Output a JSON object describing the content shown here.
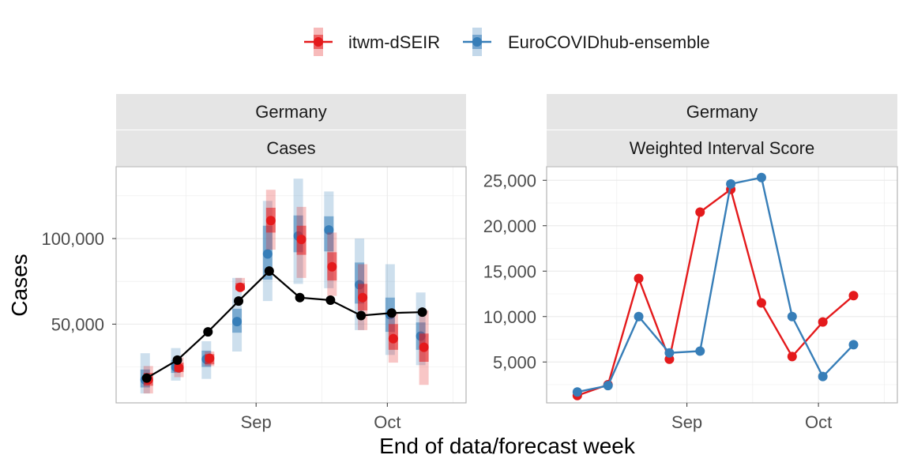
{
  "legend": {
    "entries": [
      {
        "name": "itwm-dSEIR",
        "color": "#e41a1c"
      },
      {
        "name": "EuroCOVIDhub-ensemble",
        "color": "#377eb8"
      }
    ]
  },
  "xlabel": "End of data/forecast week",
  "colors": {
    "observed": "#000000",
    "strip": "#e5e5e5",
    "grid": "#ebebeb",
    "border": "#b3b3b3"
  },
  "chart_data": [
    {
      "type": "line",
      "strip_top": "Germany",
      "strip_bottom": "Cases",
      "ylabel": "Cases",
      "xlim": [
        "2021-07-31",
        "2021-10-19"
      ],
      "ylim": [
        4000,
        142000
      ],
      "x_ticks": [
        {
          "date": "2021-09-01",
          "label": "Sep"
        },
        {
          "date": "2021-10-01",
          "label": "Oct"
        }
      ],
      "y_ticks": [
        {
          "value": 50000,
          "label": "50,000"
        },
        {
          "value": 100000,
          "label": "100,000"
        }
      ],
      "observed": {
        "dates": [
          "2021-08-07",
          "2021-08-14",
          "2021-08-21",
          "2021-08-28",
          "2021-09-04",
          "2021-09-11",
          "2021-09-18",
          "2021-09-25",
          "2021-10-02",
          "2021-10-09"
        ],
        "values": [
          18500,
          29000,
          45500,
          63500,
          81000,
          65500,
          64000,
          55000,
          56500,
          57000
        ]
      },
      "forecasts": [
        {
          "model": "EuroCOVIDhub-ensemble",
          "dates": [
            "2021-08-07",
            "2021-08-14",
            "2021-08-21",
            "2021-08-28",
            "2021-09-04",
            "2021-09-11",
            "2021-09-18",
            "2021-09-25",
            "2021-10-02",
            "2021-10-09"
          ],
          "median": [
            17500,
            25000,
            29500,
            51500,
            91000,
            101500,
            105000,
            73000,
            55500,
            43000
          ],
          "q25": [
            13000,
            21500,
            25000,
            45000,
            76000,
            92000,
            92500,
            62000,
            45500,
            35000
          ],
          "q75": [
            23500,
            29000,
            34500,
            59000,
            107500,
            113500,
            113000,
            86000,
            65500,
            51000
          ],
          "q05": [
            9500,
            17000,
            18000,
            34000,
            63500,
            73500,
            71000,
            46500,
            32000,
            26000
          ],
          "q95": [
            33000,
            36000,
            40000,
            77000,
            122000,
            135000,
            127500,
            100000,
            85000,
            68500
          ]
        },
        {
          "model": "itwm-dSEIR",
          "dates": [
            "2021-08-07",
            "2021-08-14",
            "2021-08-21",
            "2021-08-28",
            "2021-09-04",
            "2021-09-11",
            "2021-09-18",
            "2021-09-25",
            "2021-10-02",
            "2021-10-09"
          ],
          "median": [
            17500,
            24500,
            30000,
            71500,
            110500,
            99500,
            83500,
            65500,
            41500,
            36500
          ],
          "q25": [
            14000,
            22000,
            26500,
            70000,
            103500,
            90500,
            75500,
            58000,
            35000,
            28000
          ],
          "q75": [
            21500,
            27500,
            32500,
            74000,
            118000,
            107500,
            92000,
            73500,
            50000,
            44500
          ],
          "q05": [
            9500,
            19000,
            25500,
            69500,
            93500,
            77000,
            66500,
            46500,
            27500,
            14500
          ],
          "q95": [
            25500,
            30500,
            34000,
            77000,
            128500,
            118500,
            103500,
            85000,
            56500,
            58000
          ]
        }
      ]
    },
    {
      "type": "line",
      "strip_top": "Germany",
      "strip_bottom": "Weighted Interval Score",
      "xlim": [
        "2021-07-31",
        "2021-10-19"
      ],
      "ylim": [
        500,
        26500
      ],
      "x_ticks": [
        {
          "date": "2021-09-01",
          "label": "Sep"
        },
        {
          "date": "2021-10-01",
          "label": "Oct"
        }
      ],
      "y_ticks": [
        {
          "value": 5000,
          "label": "5,000"
        },
        {
          "value": 10000,
          "label": "10,000"
        },
        {
          "value": 15000,
          "label": "15,000"
        },
        {
          "value": 20000,
          "label": "20,000"
        },
        {
          "value": 25000,
          "label": "25,000"
        }
      ],
      "series": [
        {
          "name": "itwm-dSEIR",
          "dates": [
            "2021-08-07",
            "2021-08-14",
            "2021-08-21",
            "2021-08-28",
            "2021-09-04",
            "2021-09-11",
            "2021-09-18",
            "2021-09-25",
            "2021-10-02",
            "2021-10-09"
          ],
          "values": [
            1300,
            2500,
            14200,
            5300,
            21500,
            24000,
            11500,
            5600,
            9400,
            12300
          ]
        },
        {
          "name": "EuroCOVIDhub-ensemble",
          "dates": [
            "2021-08-07",
            "2021-08-14",
            "2021-08-21",
            "2021-08-28",
            "2021-09-04",
            "2021-09-11",
            "2021-09-18",
            "2021-09-25",
            "2021-10-02",
            "2021-10-09"
          ],
          "values": [
            1700,
            2400,
            10000,
            6000,
            6200,
            24600,
            25300,
            10000,
            3400,
            6900
          ]
        }
      ]
    }
  ]
}
